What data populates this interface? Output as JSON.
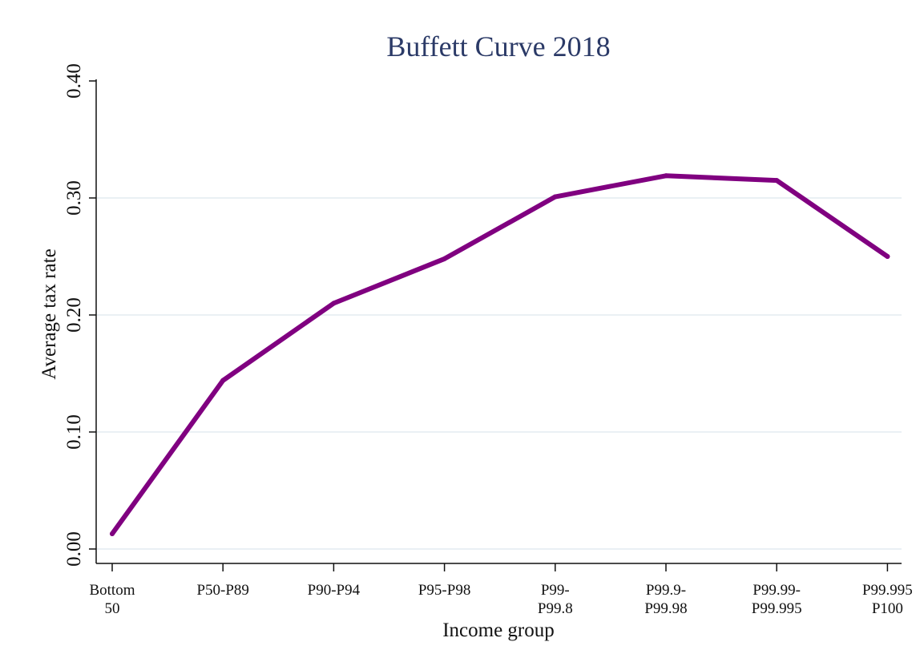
{
  "colors": {
    "title": "#2b3a67",
    "line": "#800080",
    "grid": "#e3ebf0",
    "axis": "#111111"
  },
  "chart_data": {
    "type": "line",
    "title": "Buffett Curve 2018",
    "xlabel": "Income group",
    "ylabel": "Average tax rate",
    "categories": [
      [
        "Bottom",
        "50"
      ],
      [
        "P50-P89"
      ],
      [
        "P90-P94"
      ],
      [
        "P95-P98"
      ],
      [
        "P99-",
        "P99.8"
      ],
      [
        "P99.9-",
        "P99.98"
      ],
      [
        "P99.99-",
        "P99.995"
      ],
      [
        "P99.995",
        "P100"
      ]
    ],
    "series": [
      {
        "values": [
          0.013,
          0.144,
          0.21,
          0.248,
          0.301,
          0.319,
          0.315,
          0.25
        ]
      }
    ],
    "ylim": [
      0,
      0.4
    ],
    "yticks": [
      "0.00",
      "0.10",
      "0.20",
      "0.30",
      "0.40"
    ],
    "ytick_values": [
      0,
      0.1,
      0.2,
      0.3,
      0.4
    ],
    "grid": true,
    "legend": "none"
  }
}
